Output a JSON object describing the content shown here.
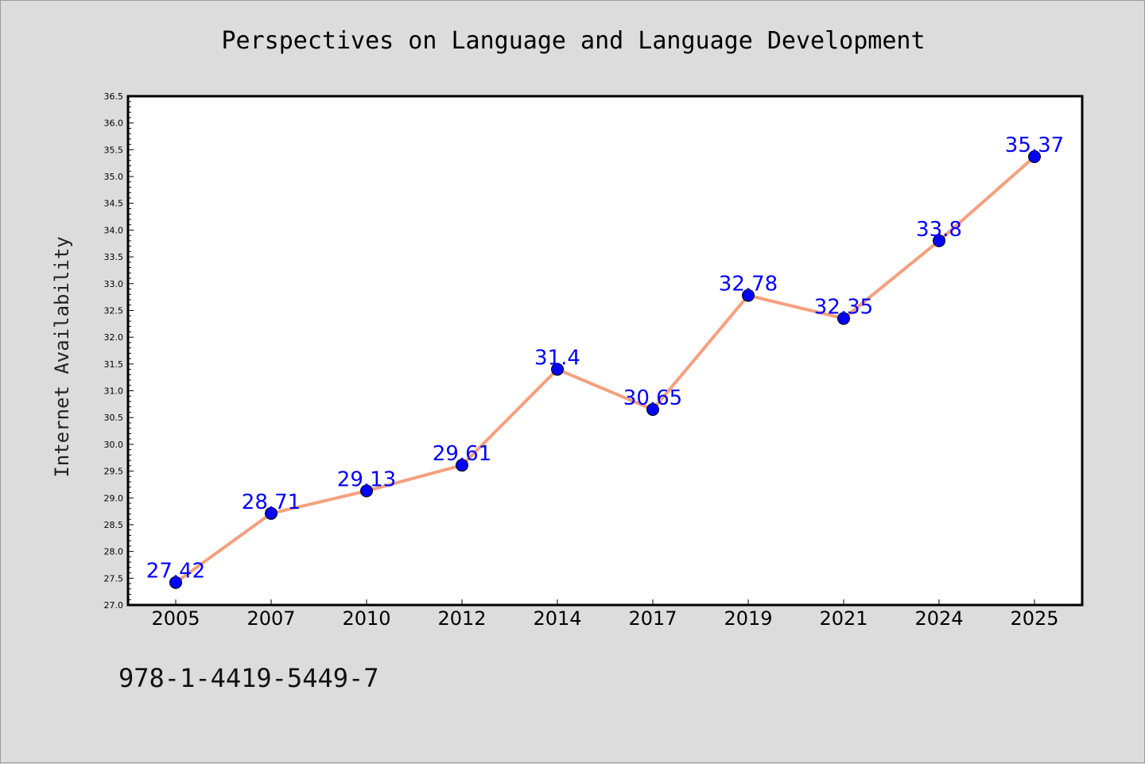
{
  "chart_data": {
    "type": "line",
    "title": "Perspectives on Language and Language Development",
    "xlabel": "",
    "ylabel": "Internet Availability",
    "categories": [
      "2005",
      "2007",
      "2010",
      "2012",
      "2014",
      "2017",
      "2019",
      "2021",
      "2024",
      "2025"
    ],
    "series": [
      {
        "values": [
          27.42,
          28.71,
          29.13,
          29.61,
          31.4,
          30.65,
          32.78,
          32.35,
          33.8,
          35.37
        ],
        "labels": [
          "27.42",
          "28.71",
          "29.13",
          "29.61",
          "31.4",
          "30.65",
          "32.78",
          "32.35",
          "33.8",
          "35.37"
        ]
      }
    ],
    "ylim": [
      27.0,
      36.5
    ],
    "yticks": [
      "27.0",
      "27.5",
      "28.0",
      "28.5",
      "29.0",
      "29.5",
      "30.0",
      "30.5",
      "31.0",
      "31.5",
      "32.0",
      "32.5",
      "33.0",
      "33.5",
      "34.0",
      "34.5",
      "35.0",
      "35.5",
      "36.0",
      "36.5"
    ],
    "line_color": "#f4a07e",
    "marker_color": "#0000ff",
    "label_color": "#0000ff",
    "grid": false,
    "legend": "none"
  },
  "footer": {
    "isbn": "978-1-4419-5449-7"
  }
}
